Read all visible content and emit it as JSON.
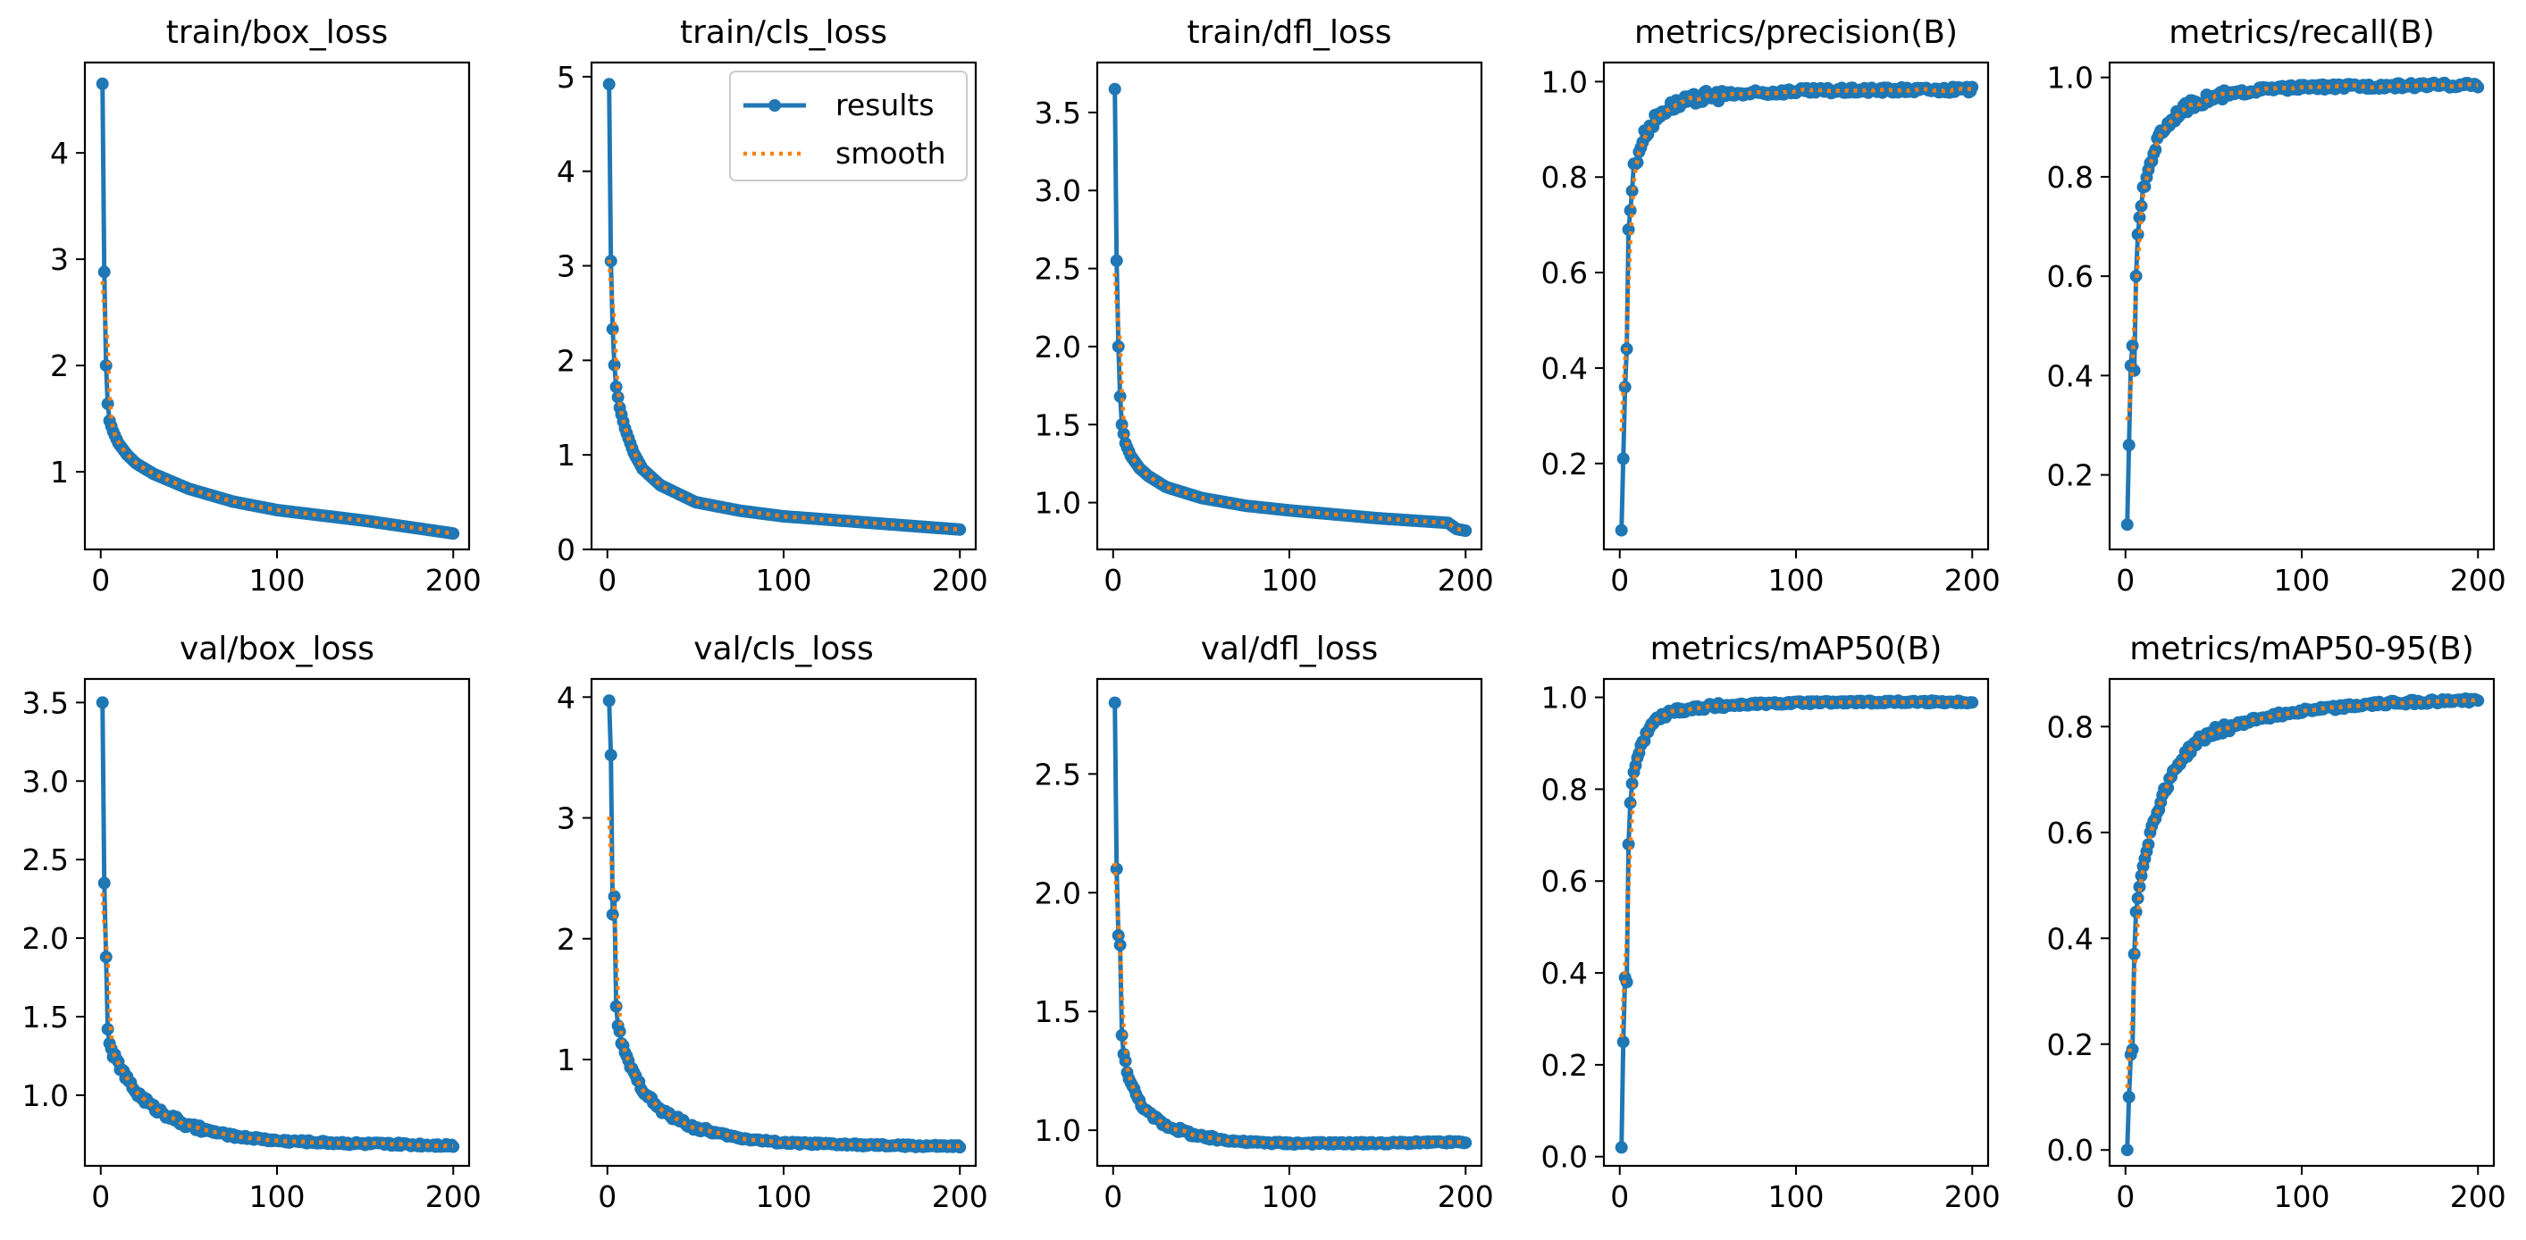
{
  "colors": {
    "results": "#1f77b4",
    "smooth": "#ff7f0e",
    "axes": "#000000"
  },
  "legend": {
    "placement": "upper-right",
    "in_panel": 1,
    "results_label": "results",
    "smooth_label": "smooth"
  },
  "chart_data": [
    {
      "type": "line",
      "title": "train/box_loss",
      "xlim": [
        -9,
        209
      ],
      "ylim": [
        0.27,
        4.85
      ],
      "xticks": [
        0,
        100,
        200
      ],
      "yticks": [
        1,
        2,
        3,
        4
      ],
      "keypoints": [
        [
          1,
          4.65
        ],
        [
          2,
          2.88
        ],
        [
          3,
          2.0
        ],
        [
          4,
          1.64
        ],
        [
          5,
          1.48
        ],
        [
          7,
          1.38
        ],
        [
          10,
          1.27
        ],
        [
          15,
          1.16
        ],
        [
          20,
          1.08
        ],
        [
          30,
          0.98
        ],
        [
          50,
          0.84
        ],
        [
          75,
          0.72
        ],
        [
          100,
          0.64
        ],
        [
          150,
          0.54
        ],
        [
          200,
          0.42
        ]
      ]
    },
    {
      "type": "line",
      "title": "train/cls_loss",
      "xlim": [
        -9,
        209
      ],
      "ylim": [
        0.0,
        5.15
      ],
      "xticks": [
        0,
        100,
        200
      ],
      "yticks": [
        0,
        1,
        2,
        3,
        4,
        5
      ],
      "keypoints": [
        [
          1,
          4.92
        ],
        [
          2,
          3.05
        ],
        [
          3,
          2.33
        ],
        [
          4,
          1.95
        ],
        [
          5,
          1.72
        ],
        [
          7,
          1.5
        ],
        [
          10,
          1.28
        ],
        [
          15,
          1.02
        ],
        [
          20,
          0.85
        ],
        [
          30,
          0.68
        ],
        [
          50,
          0.5
        ],
        [
          75,
          0.41
        ],
        [
          100,
          0.35
        ],
        [
          150,
          0.28
        ],
        [
          200,
          0.21
        ]
      ]
    },
    {
      "type": "line",
      "title": "train/dfl_loss",
      "xlim": [
        -9,
        209
      ],
      "ylim": [
        0.7,
        3.82
      ],
      "xticks": [
        0,
        100,
        200
      ],
      "yticks": [
        1.0,
        1.5,
        2.0,
        2.5,
        3.0,
        3.5
      ],
      "keypoints": [
        [
          1,
          3.65
        ],
        [
          2,
          2.55
        ],
        [
          3,
          2.0
        ],
        [
          4,
          1.68
        ],
        [
          5,
          1.5
        ],
        [
          7,
          1.38
        ],
        [
          10,
          1.3
        ],
        [
          15,
          1.22
        ],
        [
          20,
          1.17
        ],
        [
          30,
          1.1
        ],
        [
          50,
          1.03
        ],
        [
          75,
          0.98
        ],
        [
          100,
          0.95
        ],
        [
          150,
          0.9
        ],
        [
          190,
          0.87
        ],
        [
          195,
          0.83
        ],
        [
          200,
          0.82
        ]
      ]
    },
    {
      "type": "line",
      "title": "metrics/precision(B)",
      "xlim": [
        -9,
        209
      ],
      "ylim": [
        0.02,
        1.04
      ],
      "xticks": [
        0,
        100,
        200
      ],
      "yticks": [
        0.2,
        0.4,
        0.6,
        0.8,
        1.0
      ],
      "keypoints": [
        [
          1,
          0.06
        ],
        [
          2,
          0.21
        ],
        [
          3,
          0.36
        ],
        [
          4,
          0.44
        ],
        [
          5,
          0.69
        ],
        [
          6,
          0.73
        ],
        [
          8,
          0.82
        ],
        [
          10,
          0.84
        ],
        [
          13,
          0.88
        ],
        [
          16,
          0.9
        ],
        [
          20,
          0.92
        ],
        [
          25,
          0.94
        ],
        [
          30,
          0.95
        ],
        [
          40,
          0.96
        ],
        [
          50,
          0.97
        ],
        [
          75,
          0.975
        ],
        [
          100,
          0.98
        ],
        [
          150,
          0.982
        ],
        [
          200,
          0.983
        ]
      ],
      "jitter": 0.012
    },
    {
      "type": "line",
      "title": "metrics/recall(B)",
      "xlim": [
        -9,
        209
      ],
      "ylim": [
        0.05,
        1.03
      ],
      "xticks": [
        0,
        100,
        200
      ],
      "yticks": [
        0.2,
        0.4,
        0.6,
        0.8,
        1.0
      ],
      "keypoints": [
        [
          1,
          0.1
        ],
        [
          3,
          0.42
        ],
        [
          4,
          0.46
        ],
        [
          5,
          0.41
        ],
        [
          6,
          0.6
        ],
        [
          7,
          0.69
        ],
        [
          8,
          0.71
        ],
        [
          10,
          0.77
        ],
        [
          12,
          0.8
        ],
        [
          15,
          0.84
        ],
        [
          20,
          0.89
        ],
        [
          25,
          0.91
        ],
        [
          30,
          0.93
        ],
        [
          40,
          0.95
        ],
        [
          50,
          0.96
        ],
        [
          75,
          0.975
        ],
        [
          100,
          0.98
        ],
        [
          150,
          0.983
        ],
        [
          200,
          0.985
        ]
      ],
      "jitter": 0.01
    },
    {
      "type": "line",
      "title": "val/box_loss",
      "xlim": [
        -9,
        209
      ],
      "ylim": [
        0.55,
        3.65
      ],
      "xticks": [
        0,
        100,
        200
      ],
      "yticks": [
        1.0,
        1.5,
        2.0,
        2.5,
        3.0,
        3.5
      ],
      "keypoints": [
        [
          1,
          3.5
        ],
        [
          2,
          2.35
        ],
        [
          3,
          1.88
        ],
        [
          4,
          1.42
        ],
        [
          5,
          1.33
        ],
        [
          7,
          1.26
        ],
        [
          10,
          1.2
        ],
        [
          15,
          1.1
        ],
        [
          20,
          1.02
        ],
        [
          30,
          0.92
        ],
        [
          50,
          0.8
        ],
        [
          75,
          0.74
        ],
        [
          100,
          0.71
        ],
        [
          150,
          0.69
        ],
        [
          200,
          0.68
        ]
      ],
      "jitter": 0.02
    },
    {
      "type": "line",
      "title": "val/cls_loss",
      "xlim": [
        -9,
        209
      ],
      "ylim": [
        0.12,
        4.15
      ],
      "xticks": [
        0,
        100,
        200
      ],
      "yticks": [
        1,
        2,
        3,
        4
      ],
      "keypoints": [
        [
          1,
          3.97
        ],
        [
          2,
          3.52
        ],
        [
          3,
          2.2
        ],
        [
          4,
          2.35
        ],
        [
          5,
          1.44
        ],
        [
          6,
          1.28
        ],
        [
          8,
          1.15
        ],
        [
          10,
          1.05
        ],
        [
          15,
          0.88
        ],
        [
          20,
          0.75
        ],
        [
          30,
          0.58
        ],
        [
          50,
          0.43
        ],
        [
          75,
          0.35
        ],
        [
          100,
          0.31
        ],
        [
          150,
          0.29
        ],
        [
          200,
          0.28
        ]
      ],
      "jitter": 0.02
    },
    {
      "type": "line",
      "title": "val/dfl_loss",
      "xlim": [
        -9,
        209
      ],
      "ylim": [
        0.85,
        2.9
      ],
      "xticks": [
        0,
        100,
        200
      ],
      "yticks": [
        1.0,
        1.5,
        2.0,
        2.5
      ],
      "keypoints": [
        [
          1,
          2.8
        ],
        [
          2,
          2.1
        ],
        [
          3,
          1.82
        ],
        [
          4,
          1.78
        ],
        [
          5,
          1.4
        ],
        [
          6,
          1.32
        ],
        [
          8,
          1.25
        ],
        [
          10,
          1.2
        ],
        [
          15,
          1.12
        ],
        [
          20,
          1.07
        ],
        [
          30,
          1.02
        ],
        [
          50,
          0.97
        ],
        [
          75,
          0.95
        ],
        [
          100,
          0.945
        ],
        [
          150,
          0.945
        ],
        [
          200,
          0.95
        ]
      ],
      "jitter": 0.01
    },
    {
      "type": "line",
      "title": "metrics/mAP50(B)",
      "xlim": [
        -9,
        209
      ],
      "ylim": [
        -0.02,
        1.04
      ],
      "xticks": [
        0,
        100,
        200
      ],
      "yticks": [
        0.0,
        0.2,
        0.4,
        0.6,
        0.8,
        1.0
      ],
      "keypoints": [
        [
          1,
          0.02
        ],
        [
          2,
          0.25
        ],
        [
          3,
          0.39
        ],
        [
          4,
          0.38
        ],
        [
          5,
          0.68
        ],
        [
          6,
          0.77
        ],
        [
          7,
          0.81
        ],
        [
          8,
          0.84
        ],
        [
          10,
          0.87
        ],
        [
          12,
          0.89
        ],
        [
          15,
          0.92
        ],
        [
          20,
          0.95
        ],
        [
          25,
          0.96
        ],
        [
          30,
          0.97
        ],
        [
          50,
          0.98
        ],
        [
          75,
          0.985
        ],
        [
          100,
          0.988
        ],
        [
          150,
          0.99
        ],
        [
          200,
          0.99
        ]
      ],
      "jitter": 0.006
    },
    {
      "type": "line",
      "title": "metrics/mAP50-95(B)",
      "xlim": [
        -9,
        209
      ],
      "ylim": [
        -0.03,
        0.89
      ],
      "xticks": [
        0,
        100,
        200
      ],
      "yticks": [
        0.0,
        0.2,
        0.4,
        0.6,
        0.8
      ],
      "keypoints": [
        [
          1,
          0.0
        ],
        [
          2,
          0.1
        ],
        [
          3,
          0.18
        ],
        [
          4,
          0.19
        ],
        [
          5,
          0.37
        ],
        [
          6,
          0.45
        ],
        [
          8,
          0.5
        ],
        [
          10,
          0.54
        ],
        [
          12,
          0.57
        ],
        [
          15,
          0.61
        ],
        [
          20,
          0.66
        ],
        [
          25,
          0.7
        ],
        [
          30,
          0.73
        ],
        [
          40,
          0.77
        ],
        [
          50,
          0.79
        ],
        [
          75,
          0.815
        ],
        [
          100,
          0.83
        ],
        [
          150,
          0.845
        ],
        [
          200,
          0.85
        ]
      ],
      "jitter": 0.008
    }
  ]
}
